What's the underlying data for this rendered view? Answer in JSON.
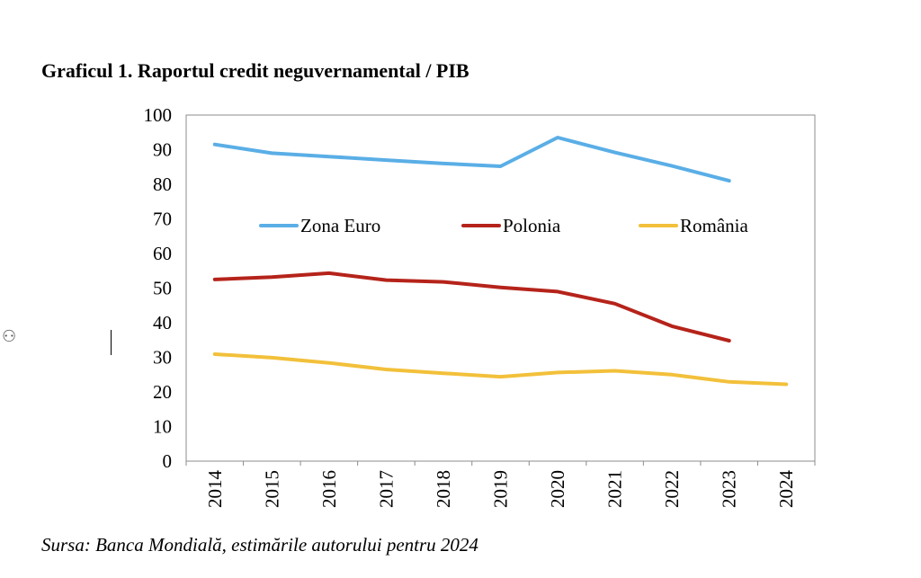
{
  "title": "Graficul 1. Raportul credit neguvernamental / PIB",
  "source": "Sursa: Banca Mondială, estimările autorului pentru 2024",
  "chart_data": {
    "type": "line",
    "title": "Graficul 1. Raportul credit neguvernamental / PIB",
    "xlabel": "",
    "ylabel": "",
    "categories": [
      "2014",
      "2015",
      "2016",
      "2017",
      "2018",
      "2019",
      "2020",
      "2021",
      "2022",
      "2023",
      "2024"
    ],
    "ylim": [
      0,
      100
    ],
    "yticks": [
      0,
      10,
      20,
      30,
      40,
      50,
      60,
      70,
      80,
      90,
      100
    ],
    "grid": false,
    "legend": "inside-top",
    "series": [
      {
        "name": "Zona Euro",
        "color": "#5aaee6",
        "values": [
          91.5,
          89.0,
          88.0,
          87.0,
          86.0,
          85.2,
          93.5,
          89.2,
          85.3,
          81.0,
          null
        ]
      },
      {
        "name": "Polonia",
        "color": "#b5231a",
        "values": [
          52.5,
          53.2,
          54.3,
          52.3,
          51.8,
          50.2,
          49.0,
          45.5,
          39.0,
          34.8,
          null
        ]
      },
      {
        "name": "România",
        "color": "#f2c03a",
        "values": [
          30.9,
          29.9,
          28.4,
          26.5,
          25.4,
          24.4,
          25.6,
          26.1,
          25.0,
          22.9,
          22.2
        ]
      }
    ]
  }
}
